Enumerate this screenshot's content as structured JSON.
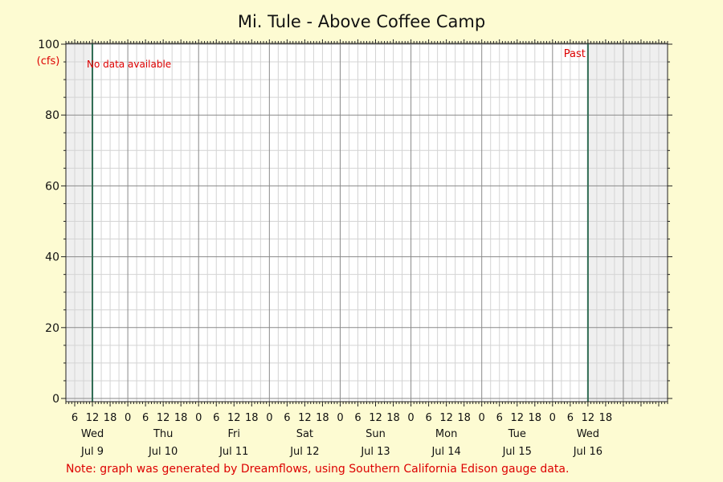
{
  "colors": {
    "background": "#fdfbd2",
    "plot_bg": "#ffffff",
    "shade": "#efefef",
    "grid_minor": "#d4d4d4",
    "grid_major": "#8a8a8a",
    "marker": "#2e6b52",
    "note": "#dd0000",
    "text": "#111111"
  },
  "chart_data": {
    "type": "line",
    "title": "Mi. Tule - Above Coffee Camp",
    "ylabel": "(cfs)",
    "xlabel": "",
    "ylim": [
      0,
      100
    ],
    "yticks": [
      0,
      20,
      40,
      60,
      80,
      100
    ],
    "xlim_hours": [
      3,
      207
    ],
    "series": [],
    "days": [
      {
        "weekday": "Wed",
        "date": "Jul 9"
      },
      {
        "weekday": "Thu",
        "date": "Jul 10"
      },
      {
        "weekday": "Fri",
        "date": "Jul 11"
      },
      {
        "weekday": "Sat",
        "date": "Jul 12"
      },
      {
        "weekday": "Sun",
        "date": "Jul 13"
      },
      {
        "weekday": "Mon",
        "date": "Jul 14"
      },
      {
        "weekday": "Tue",
        "date": "Jul 15"
      },
      {
        "weekday": "Wed",
        "date": "Jul 16"
      }
    ],
    "hour_ticks": [
      6,
      12,
      18,
      0,
      6,
      12,
      18,
      0,
      6,
      12,
      18,
      0,
      6,
      12,
      18,
      0,
      6,
      12,
      18,
      0,
      6,
      12,
      18,
      0,
      6,
      12,
      18,
      0,
      6,
      12,
      18
    ],
    "shaded_before": "Jul 9 12:00",
    "shaded_after": "Jul 16 12:00",
    "annotations": {
      "no_data": "No data available",
      "past": "Past"
    },
    "grid": true
  },
  "footer_note": "Note: graph was generated by Dreamflows, using Southern California Edison gauge data."
}
